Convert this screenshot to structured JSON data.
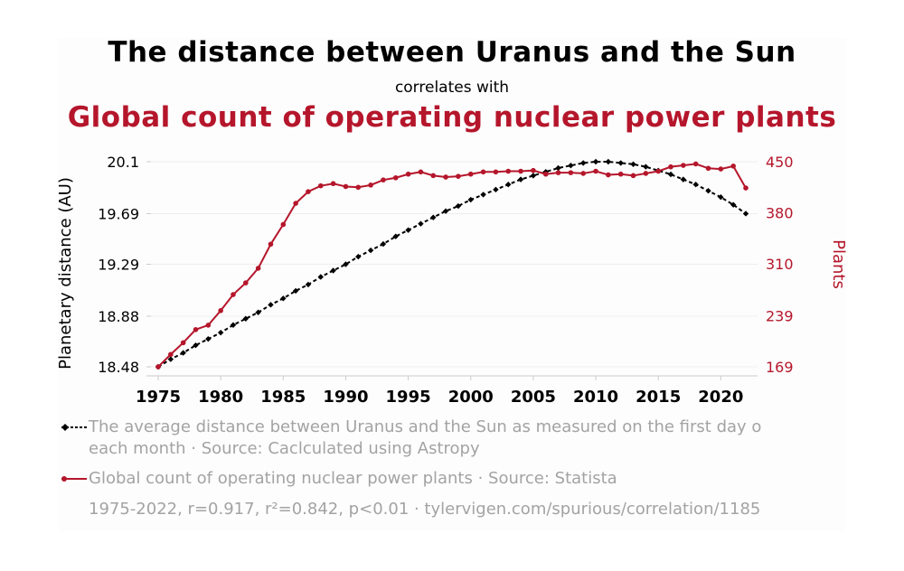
{
  "title": "The distance between Uranus and the Sun",
  "subtitle": "correlates with",
  "title2": "Global count of operating nuclear power plants",
  "legend": {
    "series1_line1": "The average distance between Uranus and the Sun as measured on the first day o",
    "series1_line2": "each month · Source: Caclculated using Astropy",
    "series2": "Global count of operating nuclear power plants · Source: Statista"
  },
  "footer": "1975-2022, r=0.917, r²=0.842, p<0.01 · tylervigen.com/spurious/correlation/1185",
  "colors": {
    "series1": "#000000",
    "series2": "#b5162b",
    "legend_text": "#a3a3a3"
  },
  "chart_data": {
    "type": "line",
    "x": [
      1975,
      1976,
      1977,
      1978,
      1979,
      1980,
      1981,
      1982,
      1983,
      1984,
      1985,
      1986,
      1987,
      1988,
      1989,
      1990,
      1991,
      1992,
      1993,
      1994,
      1995,
      1996,
      1997,
      1998,
      1999,
      2000,
      2001,
      2002,
      2003,
      2004,
      2005,
      2006,
      2007,
      2008,
      2009,
      2010,
      2011,
      2012,
      2013,
      2014,
      2015,
      2016,
      2017,
      2018,
      2019,
      2020,
      2021,
      2022
    ],
    "xticks": [
      1975,
      1980,
      1985,
      1990,
      1995,
      2000,
      2005,
      2010,
      2015,
      2020
    ],
    "ylabel": "Planetary distance (AU)",
    "y2label": "Plants",
    "ylim": [
      18.48,
      20.1
    ],
    "yticks": [
      "18.48",
      "18.88",
      "19.29",
      "19.69",
      "20.1"
    ],
    "y2lim": [
      169,
      450
    ],
    "y2ticks": [
      "169",
      "239",
      "310",
      "380",
      "450"
    ],
    "grid": "horizontal",
    "series": [
      {
        "axis": "left",
        "style": "dashed-diamond",
        "values": [
          18.48,
          18.54,
          18.59,
          18.65,
          18.7,
          18.75,
          18.81,
          18.86,
          18.91,
          18.97,
          19.02,
          19.08,
          19.13,
          19.19,
          19.24,
          19.29,
          19.35,
          19.4,
          19.45,
          19.51,
          19.56,
          19.61,
          19.66,
          19.71,
          19.75,
          19.8,
          19.84,
          19.88,
          19.92,
          19.96,
          19.99,
          20.02,
          20.05,
          20.07,
          20.09,
          20.1,
          20.1,
          20.09,
          20.08,
          20.06,
          20.03,
          20.0,
          19.96,
          19.92,
          19.87,
          19.82,
          19.76,
          19.69
        ]
      },
      {
        "axis": "right",
        "style": "solid-dot",
        "values": [
          169,
          186,
          202,
          220,
          226,
          246,
          268,
          284,
          304,
          337,
          364,
          393,
          409,
          417,
          420,
          416,
          415,
          418,
          425,
          428,
          433,
          436,
          431,
          429,
          430,
          433,
          436,
          436,
          437,
          437,
          438,
          433,
          435,
          435,
          434,
          437,
          432,
          433,
          431,
          434,
          437,
          443,
          445,
          447,
          441,
          440,
          444,
          414
        ]
      }
    ]
  }
}
